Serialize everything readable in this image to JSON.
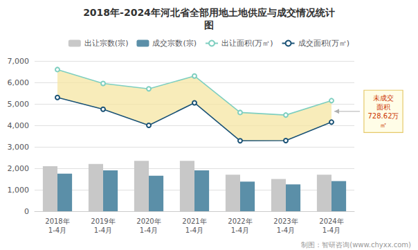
{
  "chart_data": {
    "type": "bar",
    "title": "2018年-2024年河北省全部用地土地供应与成交情况统计\n图",
    "categories": [
      "2018年\n1-4月",
      "2019年\n1-4月",
      "2020年\n1-4月",
      "2021年\n1-4月",
      "2022年\n1-4月",
      "2023年\n1-4月",
      "2024年\n1-4月"
    ],
    "series": [
      {
        "name": "出让宗数(宗)",
        "type": "bar",
        "color": "#c8c8c8",
        "values": [
          2100,
          2200,
          2350,
          2350,
          1700,
          1500,
          1700
        ]
      },
      {
        "name": "成交宗数(宗)",
        "type": "bar",
        "color": "#5b8fa8",
        "values": [
          1750,
          1900,
          1650,
          1900,
          1380,
          1250,
          1400
        ]
      },
      {
        "name": "出让面积(万㎡)",
        "type": "line",
        "color": "#7ecfc0",
        "marker": "circle",
        "values": [
          6600,
          5950,
          5700,
          6300,
          4600,
          4480,
          5150
        ]
      },
      {
        "name": "成交面积(万㎡)",
        "type": "line",
        "color": "#1a5276",
        "marker": "circle",
        "values": [
          5300,
          4750,
          4000,
          5050,
          3280,
          3290,
          4150
        ]
      }
    ],
    "ylim": [
      0,
      7000
    ],
    "yticks": [
      0,
      1000,
      2000,
      3000,
      4000,
      5000,
      6000,
      7000
    ],
    "grid": true,
    "legend": "top",
    "annotations": [
      {
        "text": "未成交\n面积\n728.62万\n㎡",
        "color": "#cc3300"
      }
    ],
    "footer": "制图：智研咨询(www.chyxx.com)"
  }
}
